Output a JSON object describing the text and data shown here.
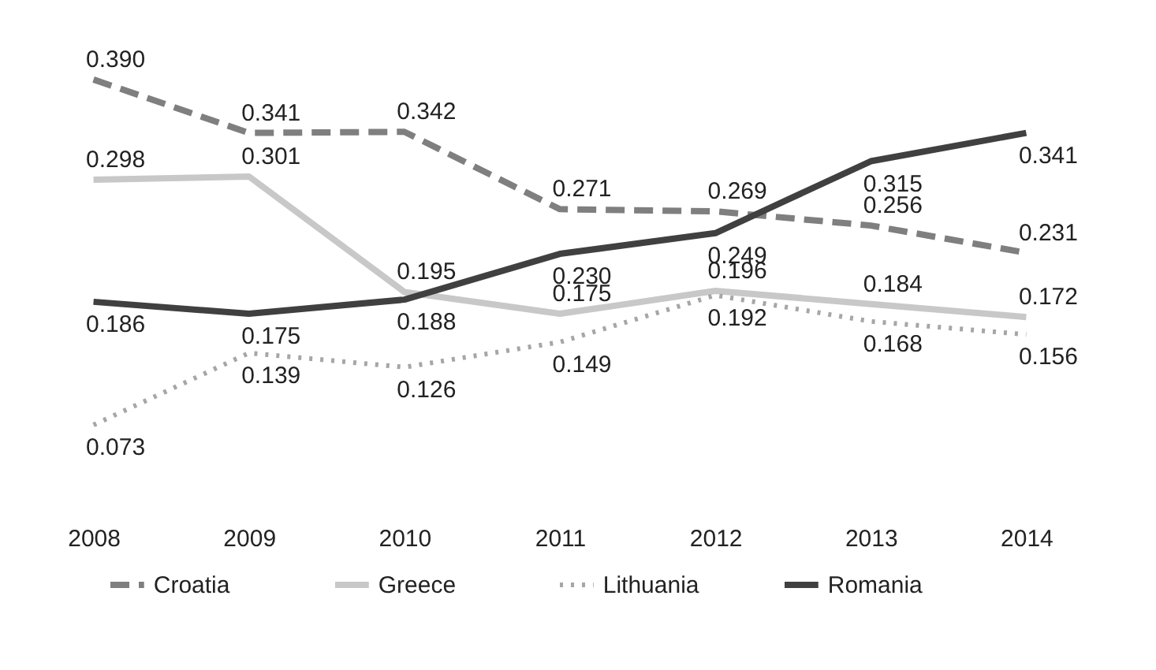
{
  "chart_data": {
    "type": "line",
    "categories": [
      "2008",
      "2009",
      "2010",
      "2011",
      "2012",
      "2013",
      "2014"
    ],
    "series": [
      {
        "name": "Croatia",
        "color": "#7f7f7f",
        "line_style": "dashed",
        "values": [
          0.39,
          0.341,
          0.342,
          0.271,
          0.269,
          0.256,
          0.231
        ],
        "value_labels": [
          "0.390",
          "0.341",
          "0.342",
          "0.271",
          "0.269",
          "0.256",
          "0.231"
        ]
      },
      {
        "name": "Greece",
        "color": "#c8c8c8",
        "line_style": "solid",
        "values": [
          0.298,
          0.301,
          0.195,
          0.175,
          0.196,
          0.184,
          0.172
        ],
        "value_labels": [
          "0.298",
          "0.301",
          "0.195",
          "0.175",
          "0.196",
          "0.184",
          "0.172"
        ]
      },
      {
        "name": "Lithuania",
        "color": "#a6a6a6",
        "line_style": "dotted",
        "values": [
          0.073,
          0.139,
          0.126,
          0.149,
          0.192,
          0.168,
          0.156
        ],
        "value_labels": [
          "0.073",
          "0.139",
          "0.126",
          "0.149",
          "0.192",
          "0.168",
          "0.156"
        ]
      },
      {
        "name": "Romania",
        "color": "#404040",
        "line_style": "solid",
        "values": [
          0.186,
          0.175,
          0.188,
          0.23,
          0.249,
          0.315,
          0.341
        ],
        "value_labels": [
          "0.186",
          "0.175",
          "0.188",
          "0.230",
          "0.249",
          "0.315",
          "0.341"
        ]
      }
    ],
    "tick_labels": "x",
    "legend": "bottom",
    "marker": "none"
  }
}
